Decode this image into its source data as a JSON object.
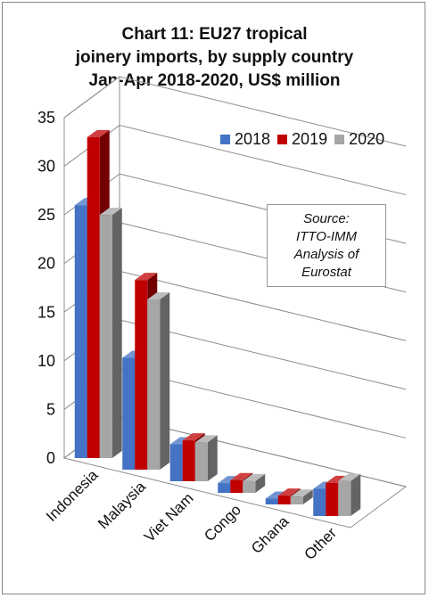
{
  "title_lines": [
    "Chart 11: EU27 tropical",
    "joinery imports, by supply country",
    "Jan-Apr 2018-2020, US$ million"
  ],
  "source_lines": [
    "Source:",
    "ITTO-IMM",
    "Analysis of",
    "Eurostat"
  ],
  "chart_data": {
    "type": "bar",
    "title": "Chart 11: EU27 tropical joinery imports, by supply country Jan-Apr 2018-2020, US$ million",
    "categories": [
      "Indonesia",
      "Malaysia",
      "Viet Nam",
      "Congo",
      "Ghana",
      "Other"
    ],
    "series": [
      {
        "name": "2018",
        "color": "#4472C4",
        "values": [
          26,
          11.5,
          3.8,
          1.0,
          0.6,
          2.8
        ]
      },
      {
        "name": "2019",
        "color": "#C00000",
        "values": [
          33,
          19.5,
          4.2,
          1.3,
          0.9,
          3.4
        ]
      },
      {
        "name": "2020",
        "color": "#A6A6A6",
        "values": [
          25,
          17.5,
          4.0,
          1.2,
          0.8,
          3.6
        ]
      }
    ],
    "ylim": [
      0,
      35
    ],
    "yticks": [
      0,
      5,
      10,
      15,
      20,
      25,
      30,
      35
    ],
    "grid": true,
    "legend": "top-right",
    "style": "3d-clustered-bar"
  }
}
